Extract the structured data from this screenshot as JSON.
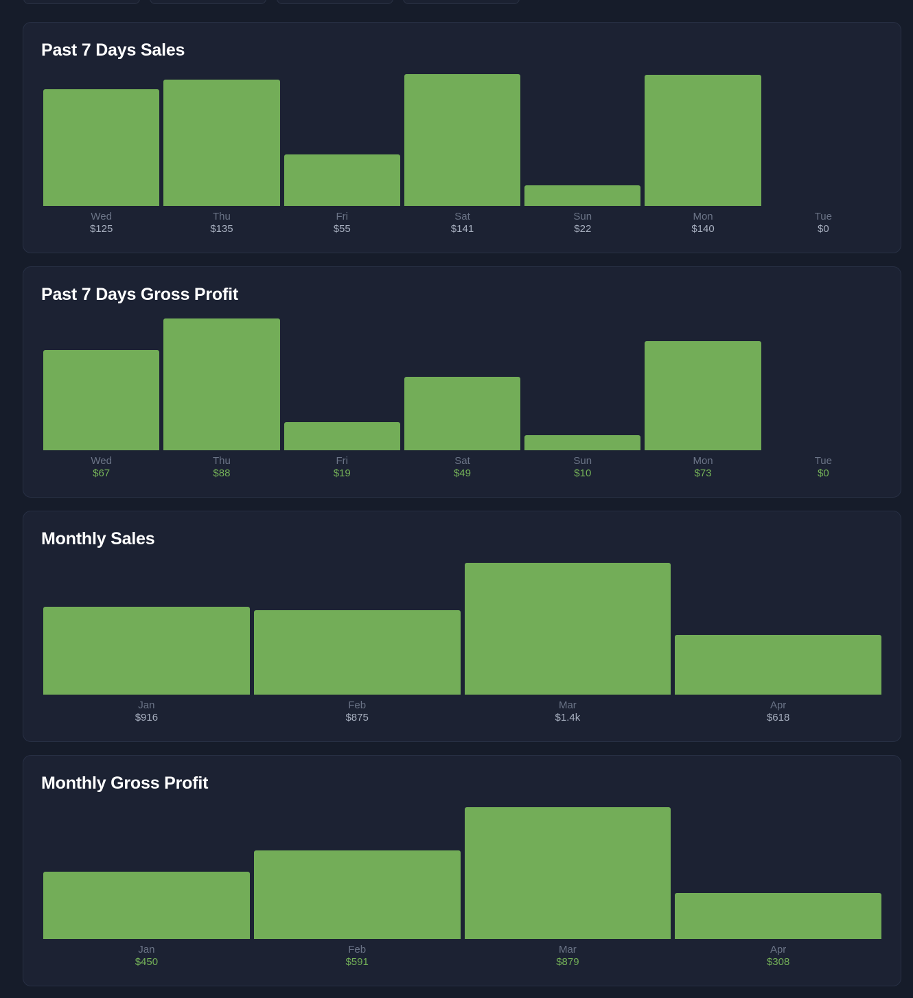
{
  "colors": {
    "bar": "#73ad58",
    "profit_value": "#74b158",
    "sales_value": "#a7afbf",
    "category": "#6b7487"
  },
  "cards": [
    {
      "title": "Past 7 Days Sales",
      "chart_data": {
        "type": "bar",
        "categories": [
          "Wed",
          "Thu",
          "Fri",
          "Sat",
          "Sun",
          "Mon",
          "Tue"
        ],
        "values": [
          125,
          135,
          55,
          141,
          22,
          140,
          0
        ],
        "value_labels": [
          "$125",
          "$135",
          "$55",
          "$141",
          "$22",
          "$140",
          "$0"
        ],
        "value_style": "neutral",
        "title": "Past 7 Days Sales"
      }
    },
    {
      "title": "Past 7 Days Gross Profit",
      "chart_data": {
        "type": "bar",
        "categories": [
          "Wed",
          "Thu",
          "Fri",
          "Sat",
          "Sun",
          "Mon",
          "Tue"
        ],
        "values": [
          67,
          88,
          19,
          49,
          10,
          73,
          0
        ],
        "value_labels": [
          "$67",
          "$88",
          "$19",
          "$49",
          "$10",
          "$73",
          "$0"
        ],
        "value_style": "profit",
        "title": "Past 7 Days Gross Profit"
      }
    },
    {
      "title": "Monthly Sales",
      "chart_data": {
        "type": "bar",
        "categories": [
          "Jan",
          "Feb",
          "Mar",
          "Apr"
        ],
        "values": [
          916,
          875,
          1370,
          618
        ],
        "value_labels": [
          "$916",
          "$875",
          "$1.4k",
          "$618"
        ],
        "value_style": "neutral",
        "title": "Monthly Sales"
      }
    },
    {
      "title": "Monthly Gross Profit",
      "chart_data": {
        "type": "bar",
        "categories": [
          "Jan",
          "Feb",
          "Mar",
          "Apr"
        ],
        "values": [
          450,
          591,
          879,
          308
        ],
        "value_labels": [
          "$450",
          "$591",
          "$879",
          "$308"
        ],
        "value_style": "profit",
        "title": "Monthly Gross Profit"
      }
    }
  ]
}
